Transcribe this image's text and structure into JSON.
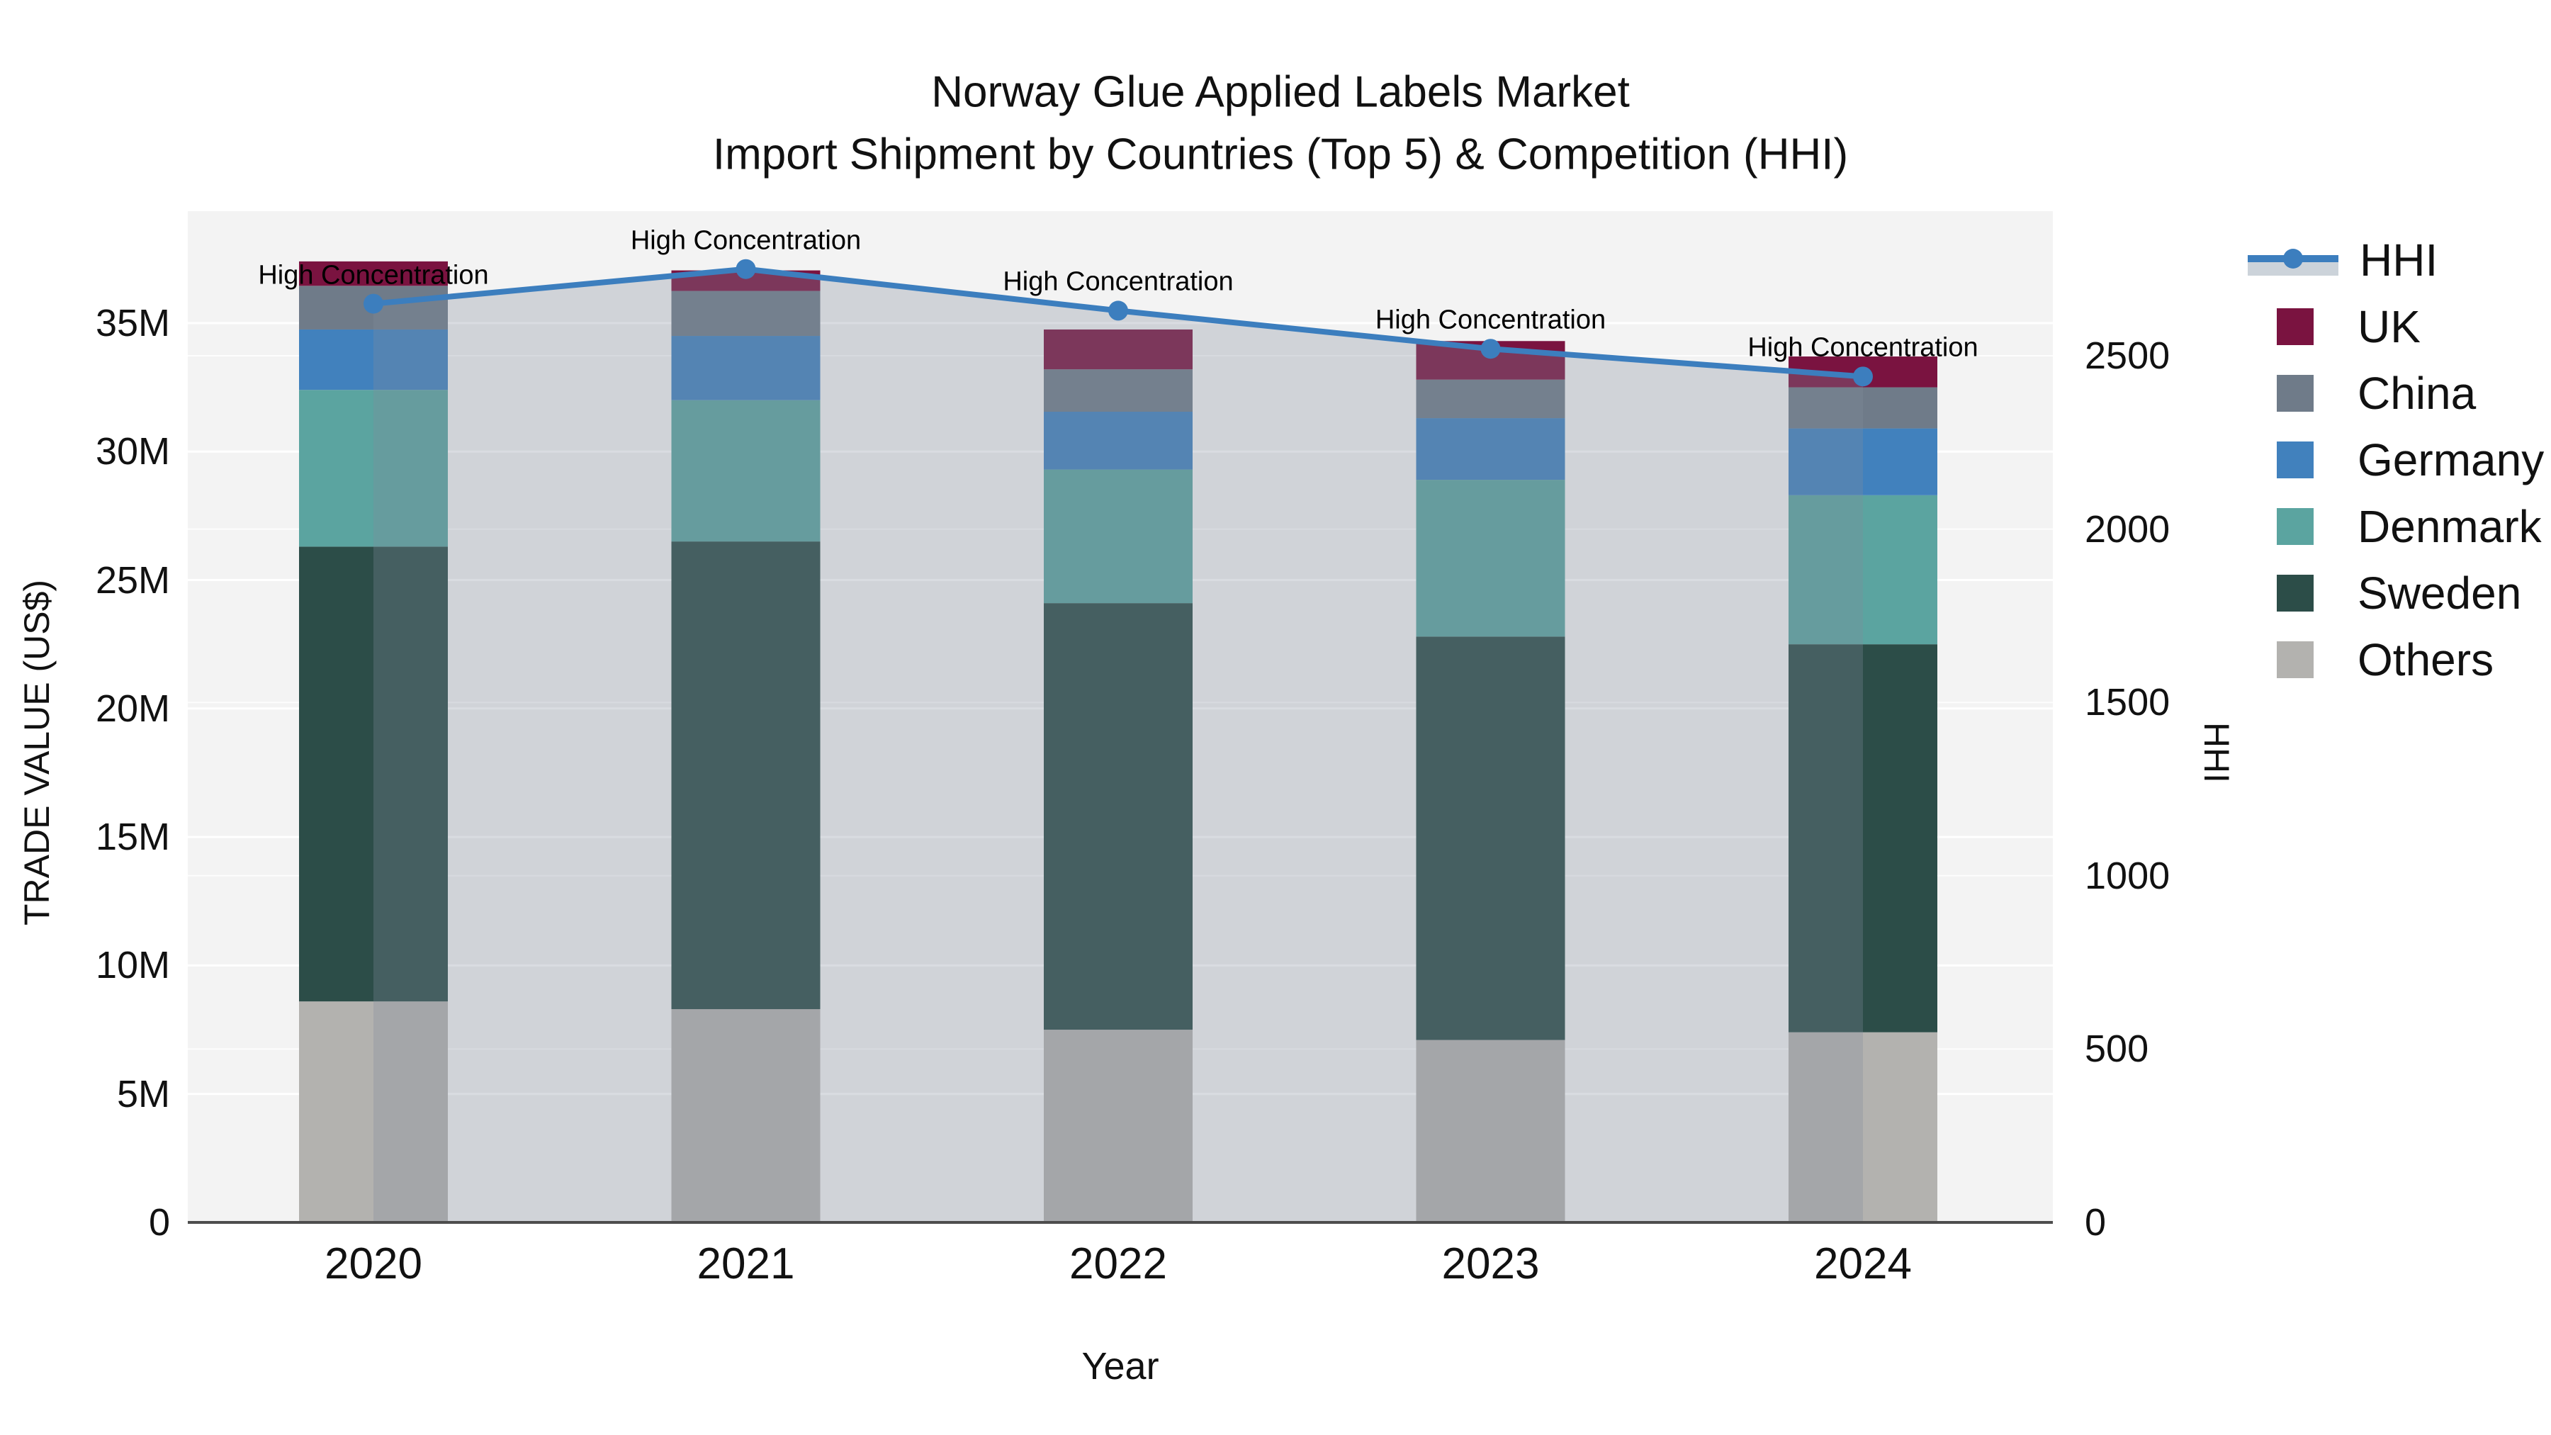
{
  "title": {
    "line1": "Norway Glue Applied Labels Market",
    "line2": "Import Shipment by Countries (Top 5) & Competition (HHI)"
  },
  "colors": {
    "paper_bg": "#ffffff",
    "plot_bg": "#f3f3f3",
    "gridline": "#ffffff",
    "axis_line": "#4d4d4d",
    "hhi_line": "#3c7ebe",
    "hhi_fill": "rgba(130,140,155,0.30)",
    "legend_fill_sample": "#ccd3da",
    "uk": "#7a1340",
    "china": "#6f7b89",
    "germany": "#4181bd",
    "denmark": "#5ba4a0",
    "sweden": "#2c4d48",
    "others": "#b3b2af"
  },
  "chart_data": {
    "type": "bar",
    "subtype": "stacked-bars-with-line-overlay",
    "title": "Norway Glue Applied Labels Market — Import Shipment by Countries (Top 5) & Competition (HHI)",
    "categories": [
      "2020",
      "2021",
      "2022",
      "2023",
      "2024"
    ],
    "xlabel": "Year",
    "ylabel_left": "TRADE VALUE (US$)",
    "ylabel_right": "HHI",
    "ylim_left_millions": [
      0,
      39.3
    ],
    "ylim_right": [
      0,
      2915
    ],
    "grid": "on",
    "legend_position": "right",
    "bar_unit": "US$ millions",
    "series": [
      {
        "name": "Others",
        "color_key": "others",
        "values_millions": [
          8.6,
          8.3,
          7.5,
          7.1,
          7.4
        ]
      },
      {
        "name": "Sweden",
        "color_key": "sweden",
        "values_millions": [
          17.7,
          18.2,
          16.6,
          15.7,
          15.1
        ]
      },
      {
        "name": "Denmark",
        "color_key": "denmark",
        "values_millions": [
          6.1,
          5.5,
          5.2,
          6.1,
          5.8
        ]
      },
      {
        "name": "Germany",
        "color_key": "germany",
        "values_millions": [
          2.35,
          2.5,
          2.25,
          2.4,
          2.6
        ]
      },
      {
        "name": "China",
        "color_key": "china",
        "values_millions": [
          1.7,
          1.75,
          1.65,
          1.5,
          1.6
        ]
      },
      {
        "name": "UK",
        "color_key": "uk",
        "values_millions": [
          0.95,
          0.8,
          1.55,
          1.5,
          1.2
        ]
      }
    ],
    "bar_totals_millions": [
      37.4,
      37.05,
      34.75,
      34.3,
      33.7
    ],
    "line_series": {
      "name": "HHI",
      "values": [
        2650,
        2750,
        2630,
        2520,
        2440
      ],
      "color_key": "hhi_line",
      "fill_to_zero": true
    },
    "annotations": [
      {
        "year": "2020",
        "text": "High Concentration"
      },
      {
        "year": "2021",
        "text": "High Concentration"
      },
      {
        "year": "2022",
        "text": "High Concentration"
      },
      {
        "year": "2023",
        "text": "High Concentration"
      },
      {
        "year": "2024",
        "text": "High Concentration"
      }
    ],
    "y_left_ticks": [
      {
        "label": "0",
        "value_millions": 0
      },
      {
        "label": "5M",
        "value_millions": 5
      },
      {
        "label": "10M",
        "value_millions": 10
      },
      {
        "label": "15M",
        "value_millions": 15
      },
      {
        "label": "20M",
        "value_millions": 20
      },
      {
        "label": "25M",
        "value_millions": 25
      },
      {
        "label": "30M",
        "value_millions": 30
      },
      {
        "label": "35M",
        "value_millions": 35
      }
    ],
    "y_right_ticks": [
      {
        "label": "0",
        "value": 0
      },
      {
        "label": "500",
        "value": 500
      },
      {
        "label": "1000",
        "value": 1000
      },
      {
        "label": "1500",
        "value": 1500
      },
      {
        "label": "2000",
        "value": 2000
      },
      {
        "label": "2500",
        "value": 2500
      }
    ]
  },
  "legend": {
    "items": [
      {
        "label": "HHI",
        "type": "line",
        "color_key": "hhi_line"
      },
      {
        "label": "UK",
        "type": "swatch",
        "color_key": "uk"
      },
      {
        "label": "China",
        "type": "swatch",
        "color_key": "china"
      },
      {
        "label": "Germany",
        "type": "swatch",
        "color_key": "germany"
      },
      {
        "label": "Denmark",
        "type": "swatch",
        "color_key": "denmark"
      },
      {
        "label": "Sweden",
        "type": "swatch",
        "color_key": "sweden"
      },
      {
        "label": "Others",
        "type": "swatch",
        "color_key": "others"
      }
    ]
  },
  "axes": {
    "x_title": "Year",
    "y_left_title": "TRADE VALUE (US$)",
    "y_right_title": "HHI"
  }
}
